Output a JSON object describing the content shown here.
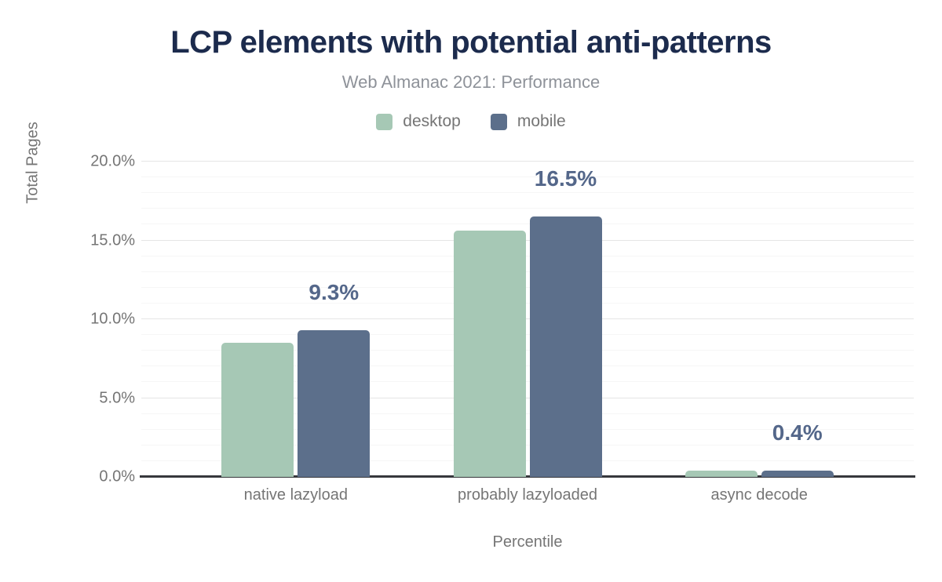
{
  "chart_data": {
    "type": "bar",
    "title": "LCP elements with potential anti-patterns",
    "subtitle": "Web Almanac 2021: Performance",
    "categories": [
      "native lazyload",
      "probably lazyloaded",
      "async decode"
    ],
    "series": [
      {
        "name": "desktop",
        "color": "#a6c8b5",
        "values": [
          8.5,
          15.6,
          0.4
        ]
      },
      {
        "name": "mobile",
        "color": "#5c6f8b",
        "values": [
          9.3,
          16.5,
          0.4
        ]
      }
    ],
    "data_labels_series": "mobile",
    "data_labels": [
      "9.3%",
      "16.5%",
      "0.4%"
    ],
    "xlabel": "Percentile",
    "ylabel": "Total Pages",
    "ylim": [
      0,
      20
    ],
    "ytick_major_step": 5,
    "ytick_minor_step": 1,
    "yticks": [
      "0.0%",
      "5.0%",
      "10.0%",
      "15.0%",
      "20.0%"
    ],
    "legend_position": "top",
    "grid": "major and minor horizontal gridlines",
    "colors": {
      "title_text": "#1c2b4d",
      "subtitle_text": "#8e9299",
      "axis_text": "#757575",
      "data_label_text": "#54678a",
      "axis_line": "#37383c",
      "grid_major": "#e5e5e5",
      "grid_minor": "#f6f6f6",
      "background": "#ffffff"
    }
  }
}
